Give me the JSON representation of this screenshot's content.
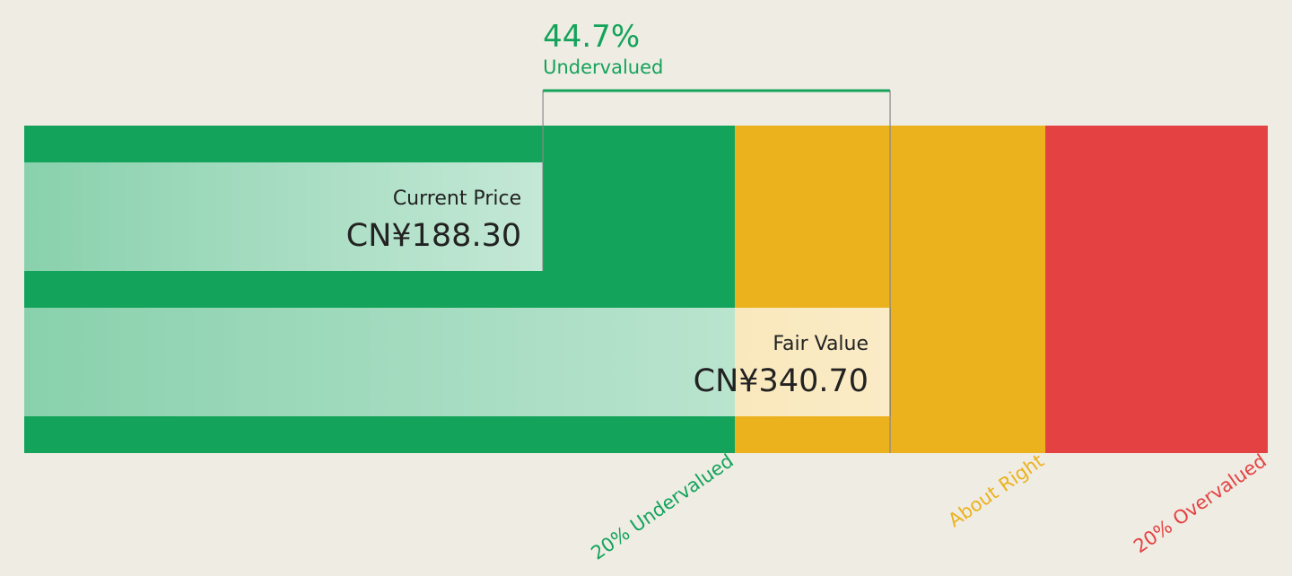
{
  "chart_data": {
    "type": "valuation",
    "categories": [
      "Current Price",
      "Fair Value"
    ],
    "values": [
      188.3,
      340.7
    ],
    "value_labels": [
      "CN¥188.30",
      "CN¥340.70"
    ],
    "difference": {
      "value": 44.7,
      "label": "44.7%"
    },
    "verdict": "Undervalued",
    "verdict_color": "#14a35a",
    "xlim": [
      -39.4,
      506.5
    ],
    "zones": [
      {
        "label": "20% Undervalued",
        "end": 272.56,
        "color": "#13a35b"
      },
      {
        "label": "About Right",
        "end": 408.84,
        "color": "#ecb21e"
      },
      {
        "label": "20% Overvalued",
        "end": 506.5,
        "color": "#e44242"
      }
    ]
  }
}
